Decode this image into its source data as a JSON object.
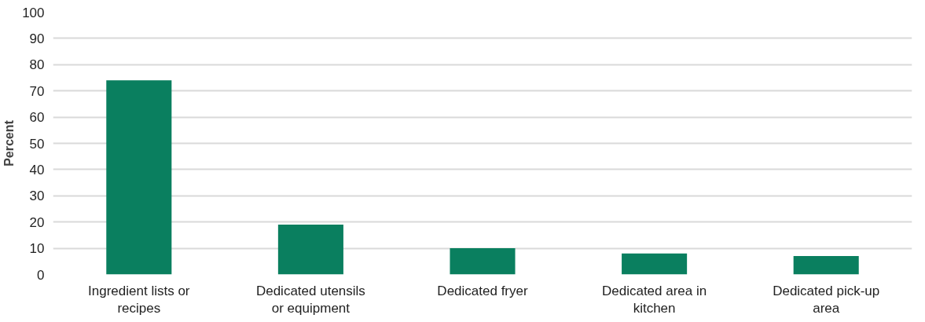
{
  "chart_data": {
    "type": "bar",
    "ylabel": "Percent",
    "categories": [
      "Ingredient lists or recipes",
      "Dedicated utensils or equipment",
      "Dedicated fryer",
      "Dedicated area in kitchen",
      "Dedicated pick-up area"
    ],
    "values": [
      74,
      19,
      10,
      8,
      7
    ],
    "color": "#0a7f5f",
    "ylim": [
      0,
      100
    ],
    "yticks": [
      0,
      10,
      20,
      30,
      40,
      50,
      60,
      70,
      80,
      90,
      100
    ],
    "grid": "y"
  }
}
